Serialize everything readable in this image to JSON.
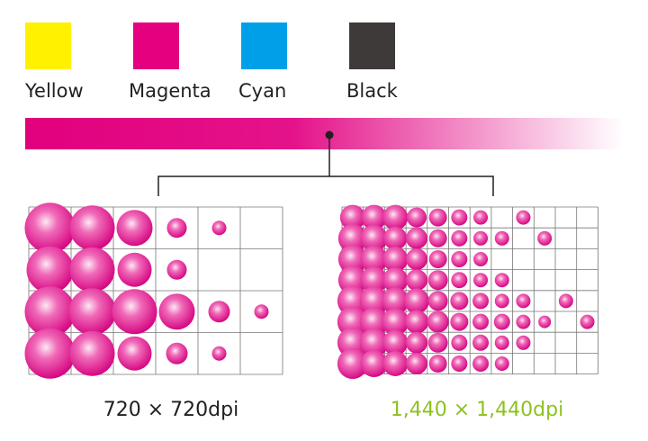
{
  "inks": [
    "Yellow",
    "Magenta",
    "Cyan",
    "Black"
  ],
  "resolutions": [
    "720 × 720dpi",
    "1,440 × 1,440dpi"
  ]
}
